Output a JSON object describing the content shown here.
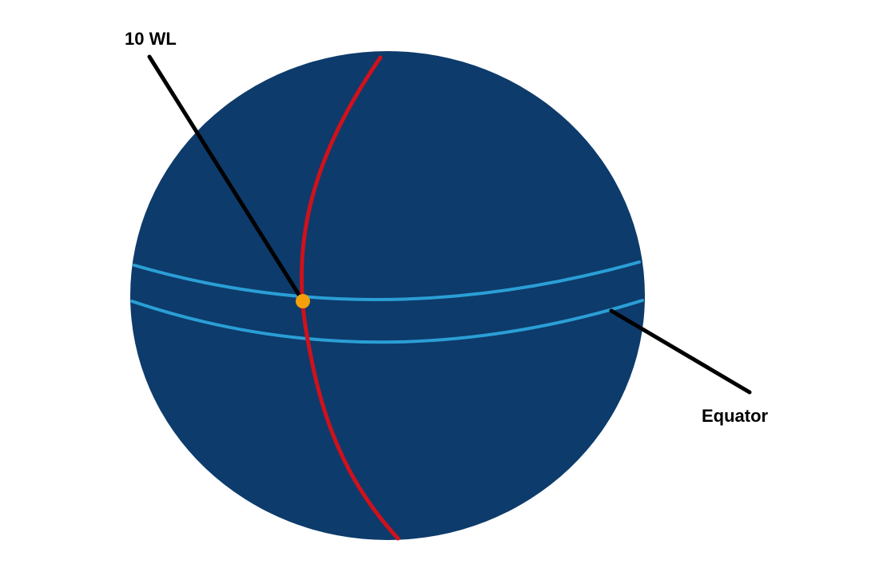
{
  "diagram": {
    "labels": {
      "point_label": "10 WL",
      "band_label": "Equator"
    },
    "colors": {
      "sphere": "#0d3b6b",
      "equator_band": "#2a9fd6",
      "meridian": "#d0111b",
      "marker": "#f5a00a",
      "leader_line": "#000000",
      "background": "#ffffff"
    }
  }
}
